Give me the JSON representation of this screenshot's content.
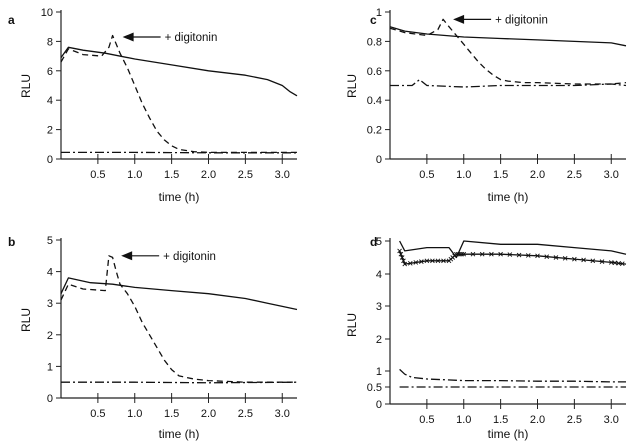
{
  "chart_data": [
    {
      "panel": "a",
      "type": "line",
      "xlabel": "time (h)",
      "ylabel": "RLU",
      "xlim": [
        0,
        3.2
      ],
      "ylim": [
        0,
        10
      ],
      "xticks": [
        0.5,
        1.0,
        1.5,
        2.0,
        2.5,
        3.0
      ],
      "xtick_labels": [
        "0.5",
        "1.0",
        "1.5",
        "2.0",
        "2.5",
        "3.0"
      ],
      "yticks": [
        0,
        2,
        4,
        6,
        8,
        10
      ],
      "ytick_labels": [
        "0",
        "2",
        "4",
        "6",
        "8",
        "10"
      ],
      "annotation": {
        "text": "+ digitonin",
        "x": 0.7,
        "y": 8.3
      },
      "series": [
        {
          "name": "solid",
          "style": "solid",
          "x": [
            0,
            0.1,
            0.3,
            0.6,
            1.0,
            1.5,
            2.0,
            2.5,
            2.8,
            3.0,
            3.1,
            3.2
          ],
          "y": [
            6.9,
            7.6,
            7.4,
            7.2,
            6.8,
            6.4,
            6.0,
            5.7,
            5.4,
            5.0,
            4.6,
            4.3
          ]
        },
        {
          "name": "dashed",
          "style": "dashed",
          "x": [
            0,
            0.1,
            0.3,
            0.55,
            0.65,
            0.7,
            0.75,
            0.8,
            0.9,
            1.0,
            1.1,
            1.2,
            1.3,
            1.4,
            1.5,
            1.6,
            1.8,
            2.0,
            2.5,
            3.0,
            3.2
          ],
          "y": [
            6.6,
            7.5,
            7.1,
            7.0,
            7.6,
            8.4,
            7.8,
            7.2,
            6.2,
            5.0,
            3.8,
            2.8,
            1.9,
            1.3,
            0.9,
            0.65,
            0.5,
            0.45,
            0.45,
            0.45,
            0.45
          ]
        },
        {
          "name": "dash-dot",
          "style": "dashdot",
          "x": [
            0,
            1.0,
            2.0,
            3.2
          ],
          "y": [
            0.45,
            0.45,
            0.42,
            0.42
          ]
        }
      ]
    },
    {
      "panel": "b",
      "type": "line",
      "xlabel": "time (h)",
      "ylabel": "RLU",
      "xlim": [
        0,
        3.2
      ],
      "ylim": [
        0,
        5
      ],
      "xticks": [
        0.5,
        1.0,
        1.5,
        2.0,
        2.5,
        3.0
      ],
      "xtick_labels": [
        "0.5",
        "1.0",
        "1.5",
        "2.0",
        "2.5",
        "3.0"
      ],
      "yticks": [
        0,
        1,
        2,
        3,
        4,
        5
      ],
      "ytick_labels": [
        "0",
        "1",
        "2",
        "3",
        "4",
        "5"
      ],
      "annotation": {
        "text": "+ digitonin",
        "x": 0.68,
        "y": 4.5
      },
      "series": [
        {
          "name": "solid",
          "style": "solid",
          "x": [
            0,
            0.1,
            0.4,
            0.7,
            1.0,
            1.5,
            2.0,
            2.5,
            2.8,
            3.0,
            3.2
          ],
          "y": [
            3.3,
            3.8,
            3.65,
            3.6,
            3.5,
            3.4,
            3.3,
            3.15,
            3.0,
            2.9,
            2.8
          ]
        },
        {
          "name": "dashed",
          "style": "dashed",
          "x": [
            0,
            0.1,
            0.3,
            0.6,
            0.65,
            0.7,
            0.75,
            0.8,
            0.9,
            1.0,
            1.1,
            1.2,
            1.3,
            1.4,
            1.5,
            1.6,
            1.8,
            2.0,
            2.5,
            3.0,
            3.2
          ],
          "y": [
            3.1,
            3.6,
            3.45,
            3.4,
            4.5,
            4.45,
            4.0,
            3.6,
            3.3,
            2.9,
            2.4,
            2.0,
            1.6,
            1.2,
            0.9,
            0.7,
            0.6,
            0.55,
            0.5,
            0.5,
            0.5
          ]
        },
        {
          "name": "dash-dot",
          "style": "dashdot",
          "x": [
            0,
            1.0,
            2.0,
            3.2
          ],
          "y": [
            0.5,
            0.5,
            0.48,
            0.5
          ]
        }
      ]
    },
    {
      "panel": "c",
      "type": "line",
      "xlabel": "time (h)",
      "ylabel": "RLU",
      "xlim": [
        0,
        3.2
      ],
      "ylim": [
        0,
        1
      ],
      "xticks": [
        0.5,
        1.0,
        1.5,
        2.0,
        2.5,
        3.0
      ],
      "xtick_labels": [
        "0.5",
        "1.0",
        "1.5",
        "2.0",
        "2.5",
        "3.0"
      ],
      "yticks": [
        0,
        0.2,
        0.4,
        0.6,
        0.8,
        1
      ],
      "ytick_labels": [
        "0",
        "0.2",
        "0.4",
        "0.6",
        "0.8",
        "1"
      ],
      "annotation": {
        "text": "+ digitonin",
        "x": 0.72,
        "y": 0.95
      },
      "series": [
        {
          "name": "solid",
          "style": "solid",
          "x": [
            0,
            0.2,
            0.5,
            1.0,
            1.5,
            2.0,
            2.5,
            3.0,
            3.2
          ],
          "y": [
            0.9,
            0.87,
            0.85,
            0.83,
            0.82,
            0.81,
            0.8,
            0.79,
            0.77
          ]
        },
        {
          "name": "dashed",
          "style": "dashed",
          "x": [
            0,
            0.2,
            0.5,
            0.65,
            0.72,
            0.8,
            0.9,
            1.0,
            1.1,
            1.2,
            1.3,
            1.4,
            1.5,
            1.6,
            1.8,
            2.0,
            2.5,
            3.0,
            3.2
          ],
          "y": [
            0.89,
            0.86,
            0.84,
            0.88,
            0.95,
            0.9,
            0.84,
            0.78,
            0.72,
            0.66,
            0.61,
            0.57,
            0.54,
            0.53,
            0.52,
            0.52,
            0.51,
            0.51,
            0.52
          ]
        },
        {
          "name": "dash-dot",
          "style": "dashdot",
          "x": [
            0,
            0.3,
            0.4,
            0.5,
            1.0,
            1.5,
            2.0,
            2.5,
            3.0,
            3.2
          ],
          "y": [
            0.5,
            0.5,
            0.54,
            0.5,
            0.49,
            0.5,
            0.5,
            0.5,
            0.51,
            0.5
          ]
        }
      ]
    },
    {
      "panel": "d",
      "type": "line",
      "xlabel": "time (h)",
      "ylabel": "RLU",
      "xlim": [
        0,
        3.2
      ],
      "ylim": [
        0,
        5
      ],
      "xticks": [
        0.5,
        1.0,
        1.5,
        2.0,
        2.5,
        3.0
      ],
      "xtick_labels": [
        "0.5",
        "1.0",
        "1.5",
        "2.0",
        "2.5",
        "3.0"
      ],
      "yticks": [
        0,
        0.5,
        1,
        2,
        3,
        4,
        5
      ],
      "ytick_labels": [
        "0",
        "0.5",
        "1",
        "2",
        "3",
        "4",
        "5"
      ],
      "series": [
        {
          "name": "solid",
          "style": "solid",
          "x": [
            0.13,
            0.2,
            0.5,
            0.8,
            0.9,
            1.0,
            1.5,
            2.0,
            2.5,
            3.0,
            3.2
          ],
          "y": [
            5.0,
            4.7,
            4.8,
            4.8,
            4.5,
            5.0,
            4.9,
            4.9,
            4.8,
            4.7,
            4.6
          ]
        },
        {
          "name": "starred",
          "style": "star",
          "x": [
            0.13,
            0.2,
            0.5,
            0.8,
            0.9,
            1.0,
            1.5,
            2.0,
            2.5,
            3.0,
            3.2
          ],
          "y": [
            4.7,
            4.3,
            4.4,
            4.4,
            4.6,
            4.6,
            4.6,
            4.55,
            4.45,
            4.35,
            4.3
          ]
        },
        {
          "name": "dash-dot-upper",
          "style": "dashdot",
          "x": [
            0.13,
            0.2,
            0.3,
            0.5,
            1.0,
            1.5,
            2.0,
            2.5,
            3.0,
            3.2
          ],
          "y": [
            1.05,
            0.9,
            0.8,
            0.75,
            0.7,
            0.7,
            0.68,
            0.68,
            0.66,
            0.66
          ]
        },
        {
          "name": "dash-dot-lower",
          "style": "dashdot",
          "x": [
            0.13,
            1.0,
            2.0,
            3.2
          ],
          "y": [
            0.5,
            0.5,
            0.5,
            0.5
          ]
        }
      ]
    }
  ]
}
